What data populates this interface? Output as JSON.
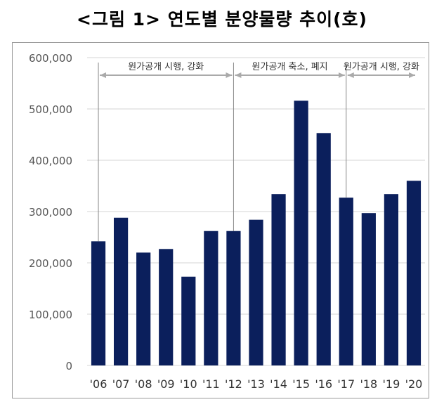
{
  "title": "<그림 1> 연도별 분양물량 추이(호)",
  "chart_data": {
    "type": "bar",
    "title": "<그림 1> 연도별 분양물량 추이(호)",
    "categories": [
      "'06",
      "'07",
      "'08",
      "'09",
      "'10",
      "'11",
      "'12",
      "'13",
      "'14",
      "'15",
      "'16",
      "'17",
      "'18",
      "'19",
      "'20"
    ],
    "values": [
      242000,
      288000,
      220000,
      227000,
      173000,
      262000,
      262000,
      284000,
      334000,
      516000,
      453000,
      327000,
      297000,
      334000,
      360000
    ],
    "ylim": [
      0,
      600000
    ],
    "yticks": [
      0,
      100000,
      200000,
      300000,
      400000,
      500000,
      600000
    ],
    "ytick_labels": [
      "0",
      "100,000",
      "200,000",
      "300,000",
      "400,000",
      "500,000",
      "600,000"
    ],
    "grid": true,
    "bar_color": "#0b1f5c",
    "annotations": [
      {
        "text": "원가공개 시행, 강화",
        "from": "'06",
        "to": "'12"
      },
      {
        "text": "원가공개 축소, 폐지",
        "from": "'12",
        "to": "'17"
      },
      {
        "text": "원가공개 시행, 강화",
        "from": "'17",
        "to": "'20"
      }
    ]
  }
}
